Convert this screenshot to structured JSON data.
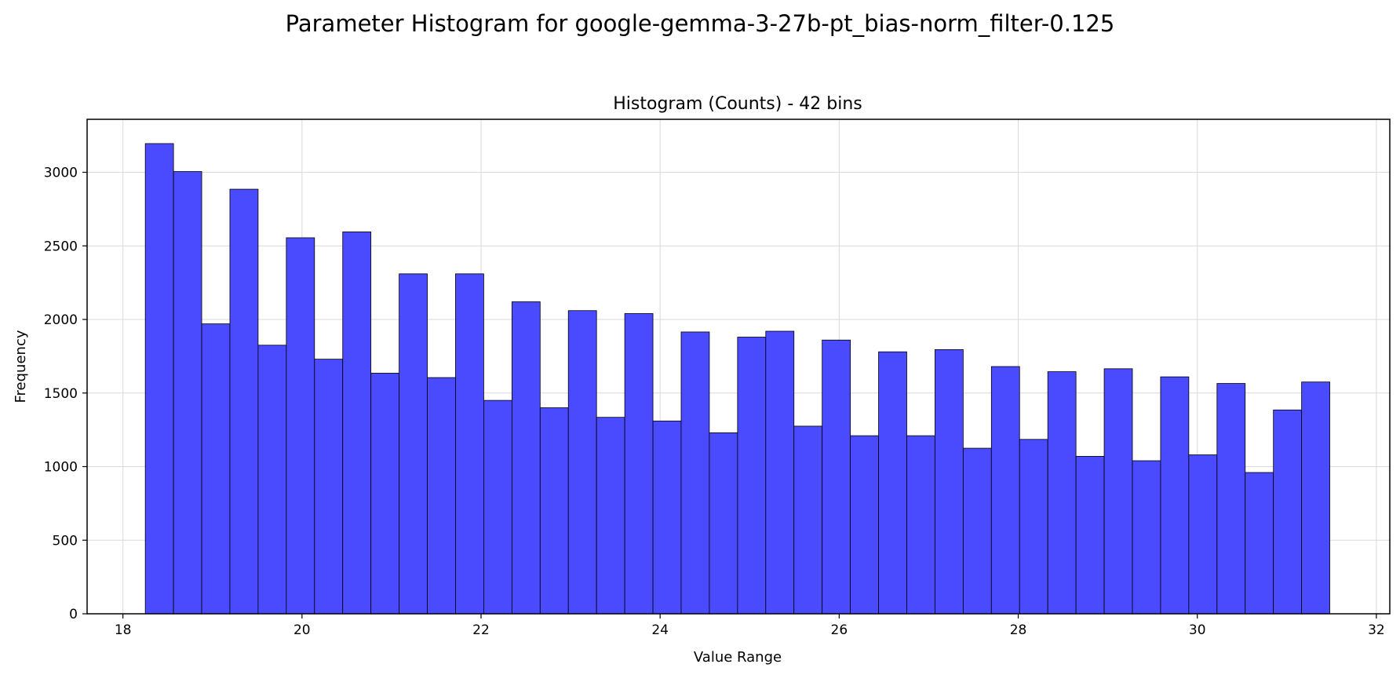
{
  "figure": {
    "suptitle": "Parameter Histogram for google-gemma-3-27b-pt_bias-norm_filter-0.125"
  },
  "chart_data": {
    "type": "bar",
    "title": "Histogram (Counts) - 42 bins",
    "xlabel": "Value Range",
    "ylabel": "Frequency",
    "xlim": [
      17.6,
      32.15
    ],
    "ylim": [
      0,
      3360
    ],
    "x_ticks": [
      18,
      20,
      22,
      24,
      26,
      28,
      30,
      32
    ],
    "y_ticks": [
      0,
      500,
      1000,
      1500,
      2000,
      2500,
      3000
    ],
    "grid": true,
    "bar_color": "#4a4aff",
    "edge_color": "#000000",
    "bin_start": 18.25,
    "bin_width": 0.315,
    "values": [
      3195,
      3005,
      1970,
      2885,
      1825,
      2555,
      1730,
      2595,
      1635,
      2310,
      1605,
      2310,
      1450,
      2120,
      1400,
      2060,
      1335,
      2040,
      1310,
      1915,
      1230,
      1880,
      1920,
      1275,
      1860,
      1210,
      1780,
      1210,
      1795,
      1125,
      1680,
      1185,
      1645,
      1070,
      1665,
      1040,
      1610,
      1080,
      1565,
      960,
      1385,
      1575
    ]
  }
}
